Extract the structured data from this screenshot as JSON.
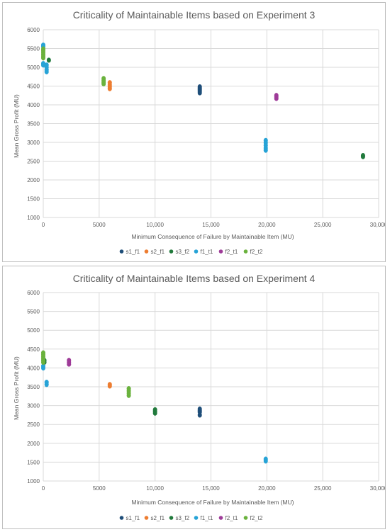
{
  "chart_data": [
    {
      "type": "scatter",
      "title": "Criticality of Maintainable Items based on Experiment 3",
      "xlabel": "Minimum Consequence of Failure by Maintainable Item (MU)",
      "ylabel": "Mean Gross Profit (MU)",
      "xlim": [
        0,
        30000
      ],
      "ylim": [
        1000,
        6000
      ],
      "x_ticks": [
        0,
        5000,
        10000,
        15000,
        20000,
        25000,
        30000
      ],
      "x_tick_labels": [
        "0",
        "5000",
        "10,000",
        "15,000",
        "20,000",
        "25,000",
        "30,000"
      ],
      "y_ticks": [
        1000,
        1500,
        2000,
        2500,
        3000,
        3500,
        4000,
        4500,
        5000,
        5500,
        6000
      ],
      "y_tick_labels": [
        "1000",
        "1500",
        "2000",
        "2500",
        "3000",
        "3500",
        "4000",
        "4500",
        "5000",
        "5500",
        "6000"
      ],
      "grid": true,
      "legend_position": "bottom",
      "series": [
        {
          "name": "s1_f1",
          "color": "#1f4e79",
          "points": [
            [
              14000,
              4320
            ],
            [
              14000,
              4360
            ],
            [
              14000,
              4400
            ],
            [
              14000,
              4440
            ],
            [
              14000,
              4480
            ]
          ]
        },
        {
          "name": "s2_f1",
          "color": "#ed7d31",
          "points": [
            [
              5950,
              4430
            ],
            [
              5950,
              4480
            ],
            [
              5950,
              4530
            ],
            [
              5950,
              4590
            ]
          ]
        },
        {
          "name": "s3_f2",
          "color": "#217a3c",
          "points": [
            [
              500,
              5190
            ],
            [
              28600,
              2620
            ],
            [
              28600,
              2650
            ]
          ]
        },
        {
          "name": "f1_t1",
          "color": "#27a3d6",
          "points": [
            [
              0,
              5060
            ],
            [
              0,
              5100
            ],
            [
              0,
              5550
            ],
            [
              0,
              5590
            ],
            [
              300,
              4880
            ],
            [
              300,
              4930
            ],
            [
              300,
              5000
            ],
            [
              300,
              5060
            ],
            [
              19900,
              2790
            ],
            [
              19900,
              2850
            ],
            [
              19900,
              2920
            ],
            [
              19900,
              2990
            ],
            [
              19900,
              3050
            ]
          ]
        },
        {
          "name": "f2_t1",
          "color": "#9e3b98",
          "points": [
            [
              20850,
              4170
            ],
            [
              20850,
              4210
            ],
            [
              20850,
              4250
            ]
          ]
        },
        {
          "name": "f2_t2",
          "color": "#6ab23d",
          "points": [
            [
              0,
              5250
            ],
            [
              0,
              5300
            ],
            [
              0,
              5350
            ],
            [
              0,
              5400
            ],
            [
              0,
              5450
            ],
            [
              0,
              5490
            ],
            [
              5400,
              4560
            ],
            [
              5400,
              4600
            ],
            [
              5400,
              4650
            ],
            [
              5400,
              4700
            ]
          ]
        }
      ]
    },
    {
      "type": "scatter",
      "title": "Criticality of Maintainable Items based on Experiment 4",
      "xlabel": "Minimum Consequence of Failure by Maintainable Item (MU)",
      "ylabel": "Mean Gross Profit (MU)",
      "xlim": [
        0,
        30000
      ],
      "ylim": [
        1000,
        6000
      ],
      "x_ticks": [
        0,
        5000,
        10000,
        15000,
        20000,
        25000,
        30000
      ],
      "x_tick_labels": [
        "0",
        "5000",
        "10,000",
        "15,000",
        "20,000",
        "25,000",
        "30,000"
      ],
      "y_ticks": [
        1000,
        1500,
        2000,
        2500,
        3000,
        3500,
        4000,
        4500,
        5000,
        5500,
        6000
      ],
      "y_tick_labels": [
        "1000",
        "1500",
        "2000",
        "2500",
        "3000",
        "3500",
        "4000",
        "4500",
        "5000",
        "5500",
        "6000"
      ],
      "grid": true,
      "legend_position": "bottom",
      "series": [
        {
          "name": "s1_f1",
          "color": "#1f4e79",
          "points": [
            [
              14000,
              2750
            ],
            [
              14000,
              2830
            ],
            [
              14000,
              2870
            ],
            [
              14000,
              2910
            ]
          ]
        },
        {
          "name": "s2_f1",
          "color": "#ed7d31",
          "points": [
            [
              5950,
              3520
            ],
            [
              5950,
              3560
            ]
          ]
        },
        {
          "name": "s3_f2",
          "color": "#217a3c",
          "points": [
            [
              10000,
              2800
            ],
            [
              10000,
              2850
            ],
            [
              10000,
              2890
            ],
            [
              100,
              4150
            ],
            [
              100,
              4200
            ]
          ]
        },
        {
          "name": "f1_t1",
          "color": "#27a3d6",
          "points": [
            [
              0,
              4000
            ],
            [
              0,
              4050
            ],
            [
              300,
              3560
            ],
            [
              300,
              3620
            ],
            [
              19900,
              1530
            ],
            [
              19900,
              1580
            ]
          ]
        },
        {
          "name": "f2_t1",
          "color": "#9e3b98",
          "points": [
            [
              2300,
              4100
            ],
            [
              2300,
              4150
            ],
            [
              2300,
              4200
            ]
          ]
        },
        {
          "name": "f2_t2",
          "color": "#6ab23d",
          "points": [
            [
              0,
              4150
            ],
            [
              0,
              4200
            ],
            [
              0,
              4250
            ],
            [
              0,
              4300
            ],
            [
              0,
              4350
            ],
            [
              0,
              4400
            ],
            [
              7650,
              3270
            ],
            [
              7650,
              3330
            ],
            [
              7650,
              3390
            ],
            [
              7650,
              3450
            ]
          ]
        }
      ]
    }
  ]
}
